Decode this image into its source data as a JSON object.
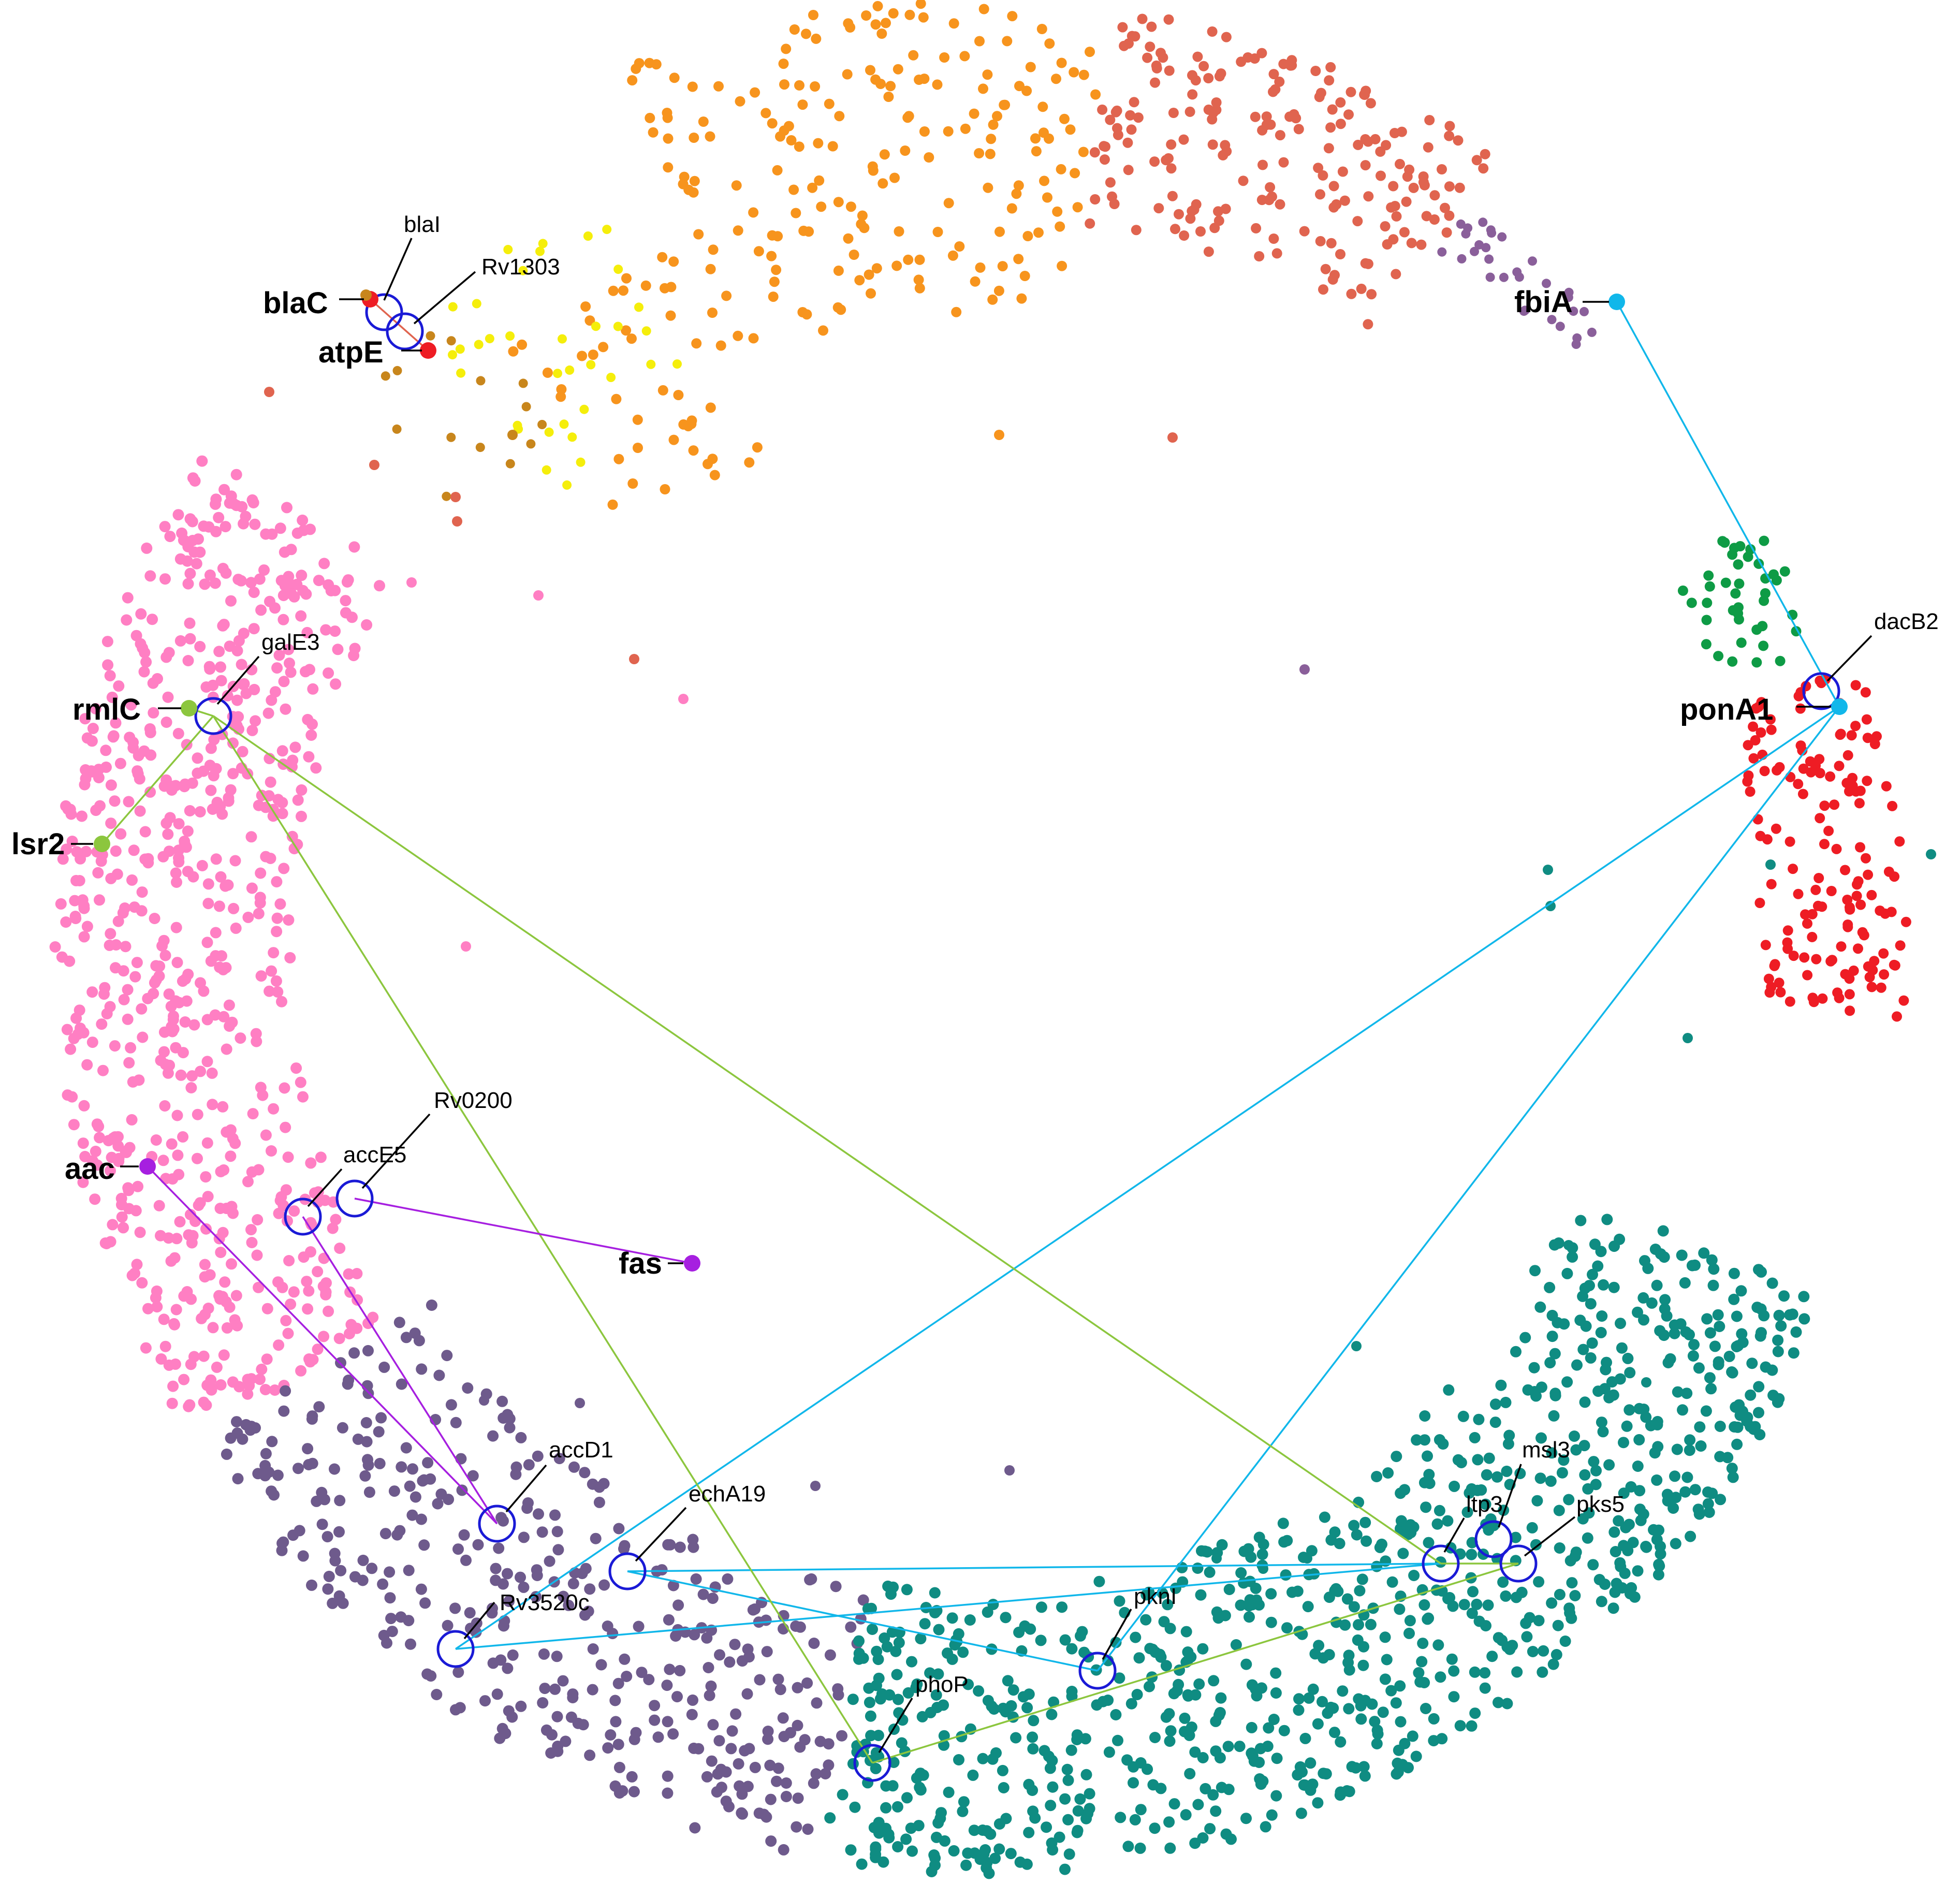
{
  "colors": {
    "pink": "#ff7fc3",
    "purple_gray": "#6e5a8c",
    "teal": "#0f8c82",
    "red": "#ee1c24",
    "green": "#0e9b45",
    "mauve": "#8a5f9a",
    "salmon": "#e0644f",
    "orange": "#f7941d",
    "yellow": "#f5ee0b",
    "brown_orange": "#c8861c",
    "ring": "#1a1ad6",
    "edge_blue": "#11b7ea",
    "edge_green": "#8cc63e",
    "edge_purple": "#a61fe0"
  },
  "hub_labels": [
    "blaC",
    "atpE",
    "fbiA",
    "rmlC",
    "lsr2",
    "ponA1",
    "aac",
    "fas"
  ],
  "node_labels": [
    "blaI",
    "Rv1303",
    "galE3",
    "dacB2",
    "Rv0200",
    "accE5",
    "accD1",
    "echA19",
    "Rv3520c",
    "phoP",
    "pknI",
    "ltp3",
    "msl3",
    "pks5"
  ]
}
